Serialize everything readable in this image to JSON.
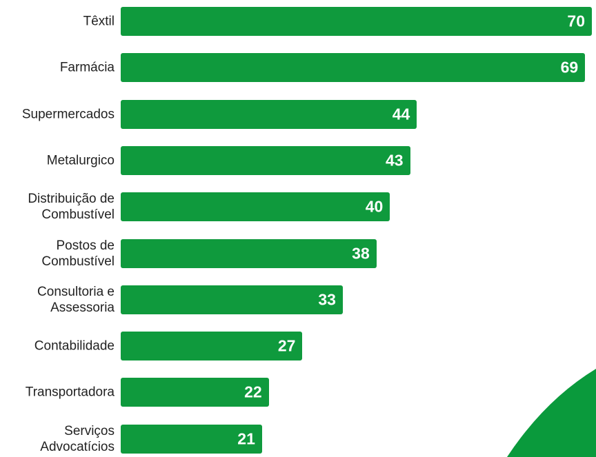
{
  "chart_data": {
    "type": "bar",
    "orientation": "horizontal",
    "color": "#0f9a3d",
    "categories": [
      "Têxtil",
      "Farmácia",
      "Supermercados",
      "Metalurgico",
      "Distribuição de\nCombustível",
      "Postos de\nCombustível",
      "Consultoria e\nAssessoria",
      "Contabilidade",
      "Transportadora",
      "Serviços\nAdvocatícios"
    ],
    "values": [
      70,
      69,
      44,
      43,
      40,
      38,
      33,
      27,
      22,
      21
    ]
  }
}
